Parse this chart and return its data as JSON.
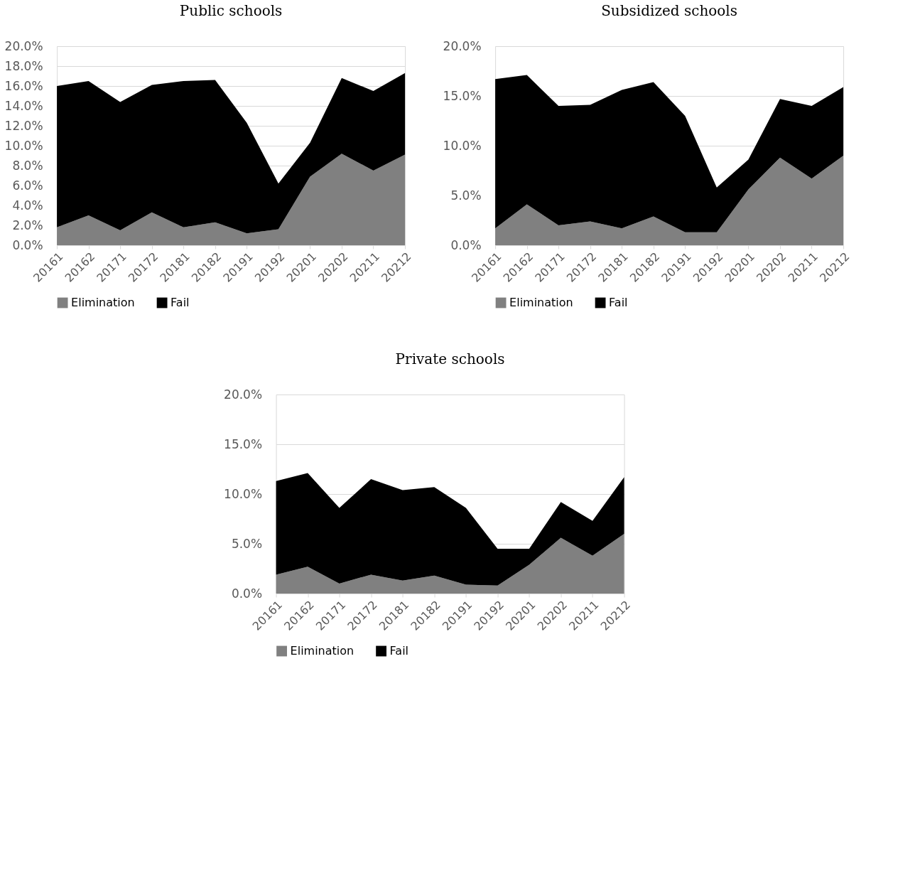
{
  "chart_data": [
    {
      "type": "area",
      "title": "Public schools",
      "stacked": true,
      "categories": [
        "20161",
        "20162",
        "20171",
        "20172",
        "20181",
        "20182",
        "20191",
        "20192",
        "20201",
        "20202",
        "20211",
        "20212"
      ],
      "series": [
        {
          "name": "Elimination",
          "color": "#808080",
          "values": [
            1.8,
            3.0,
            1.5,
            3.3,
            1.8,
            2.3,
            1.2,
            1.6,
            6.9,
            9.2,
            7.5,
            9.1
          ]
        },
        {
          "name": "Fail",
          "color": "#000000",
          "values": [
            14.2,
            13.5,
            12.9,
            12.8,
            14.7,
            14.3,
            11.1,
            4.6,
            3.4,
            7.6,
            8.0,
            8.2
          ]
        }
      ],
      "ylim": [
        0,
        20
      ],
      "yticks": [
        {
          "value": 0,
          "label": "0.0%"
        },
        {
          "value": 2,
          "label": "2.0%"
        },
        {
          "value": 4,
          "label": "4.0%"
        },
        {
          "value": 6,
          "label": "6.0%"
        },
        {
          "value": 8,
          "label": "8.0%"
        },
        {
          "value": 10,
          "label": "10.0%"
        },
        {
          "value": 12,
          "label": "12.0%"
        },
        {
          "value": 14,
          "label": "14.0%"
        },
        {
          "value": 16,
          "label": "16.0%"
        },
        {
          "value": 18,
          "label": "18.0%"
        },
        {
          "value": 20,
          "label": "20.0%"
        }
      ],
      "grid": "y",
      "legend": "bottom"
    },
    {
      "type": "area",
      "title": "Subsidized  schools",
      "stacked": true,
      "categories": [
        "20161",
        "20162",
        "20171",
        "20172",
        "20181",
        "20182",
        "20191",
        "20192",
        "20201",
        "20202",
        "20211",
        "20212"
      ],
      "series": [
        {
          "name": "Elimination",
          "color": "#808080",
          "values": [
            1.7,
            4.1,
            2.0,
            2.4,
            1.7,
            2.9,
            1.3,
            1.3,
            5.6,
            8.8,
            6.7,
            9.0
          ]
        },
        {
          "name": "Fail",
          "color": "#000000",
          "values": [
            15.0,
            13.0,
            12.0,
            11.7,
            13.9,
            13.5,
            11.7,
            4.5,
            3.0,
            5.9,
            7.3,
            6.9
          ]
        }
      ],
      "ylim": [
        0,
        20
      ],
      "yticks": [
        {
          "value": 0,
          "label": "0.0%"
        },
        {
          "value": 5,
          "label": "5.0%"
        },
        {
          "value": 10,
          "label": "10.0%"
        },
        {
          "value": 15,
          "label": "15.0%"
        },
        {
          "value": 20,
          "label": "20.0%"
        }
      ],
      "grid": "y",
      "legend": "bottom"
    },
    {
      "type": "area",
      "title": "Private schools",
      "stacked": true,
      "categories": [
        "20161",
        "20162",
        "20171",
        "20172",
        "20181",
        "20182",
        "20191",
        "20192",
        "20201",
        "20202",
        "20211",
        "20212"
      ],
      "series": [
        {
          "name": "Elimination",
          "color": "#808080",
          "values": [
            1.9,
            2.7,
            1.0,
            1.9,
            1.3,
            1.8,
            0.9,
            0.8,
            2.9,
            5.6,
            3.8,
            6.0
          ]
        },
        {
          "name": "Fail",
          "color": "#000000",
          "values": [
            9.4,
            9.4,
            7.6,
            9.6,
            9.1,
            8.9,
            7.7,
            3.7,
            1.6,
            3.6,
            3.5,
            5.7
          ]
        }
      ],
      "ylim": [
        0,
        20
      ],
      "yticks": [
        {
          "value": 0,
          "label": "0.0%"
        },
        {
          "value": 5,
          "label": "5.0%"
        },
        {
          "value": 10,
          "label": "10.0%"
        },
        {
          "value": 15,
          "label": "15.0%"
        },
        {
          "value": 20,
          "label": "20.0%"
        }
      ],
      "grid": "y",
      "legend": "bottom"
    }
  ]
}
